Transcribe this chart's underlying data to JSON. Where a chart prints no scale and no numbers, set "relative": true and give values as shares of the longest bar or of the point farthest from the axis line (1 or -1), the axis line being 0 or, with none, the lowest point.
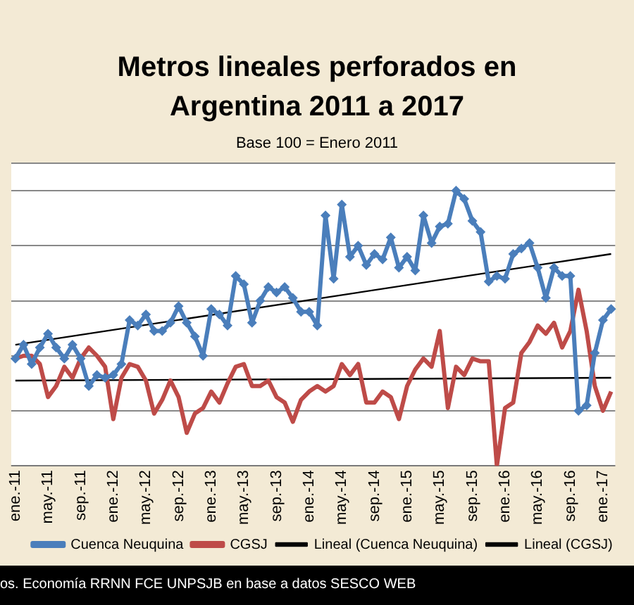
{
  "chart_data": {
    "type": "line",
    "title": "Metros lineales perforados en  Argentina 2011 a 2017",
    "subtitle": "Base 100 = Enero 2011",
    "annotations": [
      "os. Economía RRNN FCE UNPSJB en base a datos SESCO WEB"
    ],
    "relative": true,
    "grid": "y",
    "legend": "bottom",
    "line_style": "solid",
    "categories": [
      "ene.-11",
      null,
      null,
      null,
      "may.-11",
      null,
      null,
      null,
      "sep.-11",
      null,
      null,
      null,
      "ene.-12",
      null,
      null,
      null,
      "may.-12",
      null,
      null,
      null,
      "sep.-12",
      null,
      null,
      null,
      "ene.-13",
      null,
      null,
      null,
      "may.-13",
      null,
      null,
      null,
      "sep.-13",
      null,
      null,
      null,
      "ene.-14",
      null,
      null,
      null,
      "may.-14",
      null,
      null,
      null,
      "sep.-14",
      null,
      null,
      null,
      "ene.-15",
      null,
      null,
      null,
      "may.-15",
      null,
      null,
      null,
      "sep.-15",
      null,
      null,
      null,
      "ene.-16",
      null,
      null,
      null,
      "may.-16",
      null,
      null,
      null,
      "sep.-16",
      null,
      null,
      null,
      "ene.-17",
      null
    ],
    "series": [
      {
        "name": "Cuenca Neuquina",
        "color": "#4a7ebb",
        "marker": "diamond",
        "values": [
          0.39,
          0.44,
          0.37,
          0.43,
          0.48,
          0.43,
          0.39,
          0.44,
          0.39,
          0.29,
          0.33,
          0.32,
          0.33,
          0.37,
          0.53,
          0.51,
          0.55,
          0.49,
          0.49,
          0.52,
          0.58,
          0.52,
          0.47,
          0.4,
          0.57,
          0.55,
          0.51,
          0.69,
          0.66,
          0.52,
          0.6,
          0.65,
          0.63,
          0.65,
          0.61,
          0.56,
          0.56,
          0.51,
          0.91,
          0.68,
          0.95,
          0.76,
          0.8,
          0.73,
          0.77,
          0.75,
          0.83,
          0.72,
          0.76,
          0.71,
          0.91,
          0.81,
          0.87,
          0.88,
          1,
          0.97,
          0.89,
          0.85,
          0.67,
          0.69,
          0.68,
          0.77,
          0.79,
          0.81,
          0.72,
          0.61,
          0.72,
          0.69,
          0.69,
          0.2,
          0.22,
          0.41,
          0.53,
          0.57
        ]
      },
      {
        "name": "CGSJ",
        "color": "#be4b48",
        "marker": "none",
        "values": [
          0.39,
          0.4,
          0.4,
          0.37,
          0.25,
          0.29,
          0.36,
          0.32,
          0.39,
          0.43,
          0.4,
          0.36,
          0.17,
          0.32,
          0.37,
          0.36,
          0.31,
          0.19,
          0.24,
          0.31,
          0.25,
          0.12,
          0.19,
          0.21,
          0.27,
          0.23,
          0.3,
          0.36,
          0.37,
          0.29,
          0.29,
          0.31,
          0.25,
          0.23,
          0.16,
          0.24,
          0.27,
          0.29,
          0.27,
          0.29,
          0.37,
          0.33,
          0.37,
          0.23,
          0.23,
          0.27,
          0.25,
          0.17,
          0.29,
          0.35,
          0.39,
          0.36,
          0.49,
          0.21,
          0.36,
          0.33,
          0.39,
          0.38,
          0.38,
          0,
          0.21,
          0.23,
          0.41,
          0.45,
          0.51,
          0.48,
          0.52,
          0.43,
          0.49,
          0.64,
          0.49,
          0.29,
          0.2,
          0.27
        ]
      },
      {
        "name": "Lineal (Cuenca Neuquina)",
        "color": "#000000",
        "marker": "none",
        "values": [
          0.44,
          null,
          null,
          null,
          null,
          null,
          null,
          null,
          null,
          null,
          null,
          null,
          null,
          null,
          null,
          null,
          null,
          null,
          null,
          null,
          null,
          null,
          null,
          null,
          null,
          null,
          null,
          null,
          null,
          null,
          null,
          null,
          null,
          null,
          null,
          null,
          null,
          null,
          null,
          null,
          null,
          null,
          null,
          null,
          null,
          null,
          null,
          null,
          null,
          null,
          null,
          null,
          null,
          null,
          null,
          null,
          null,
          null,
          null,
          null,
          null,
          null,
          null,
          null,
          null,
          null,
          null,
          null,
          null,
          null,
          null,
          null,
          null,
          0.77
        ]
      },
      {
        "name": "Lineal (CGSJ)",
        "color": "#000000",
        "marker": "none",
        "values": [
          0.31,
          null,
          null,
          null,
          null,
          null,
          null,
          null,
          null,
          null,
          null,
          null,
          null,
          null,
          null,
          null,
          null,
          null,
          null,
          null,
          null,
          null,
          null,
          null,
          null,
          null,
          null,
          null,
          null,
          null,
          null,
          null,
          null,
          null,
          null,
          null,
          null,
          null,
          null,
          null,
          null,
          null,
          null,
          null,
          null,
          null,
          null,
          null,
          null,
          null,
          null,
          null,
          null,
          null,
          null,
          null,
          null,
          null,
          null,
          null,
          null,
          null,
          null,
          null,
          null,
          null,
          null,
          null,
          null,
          null,
          null,
          null,
          null,
          0.32
        ]
      }
    ]
  }
}
